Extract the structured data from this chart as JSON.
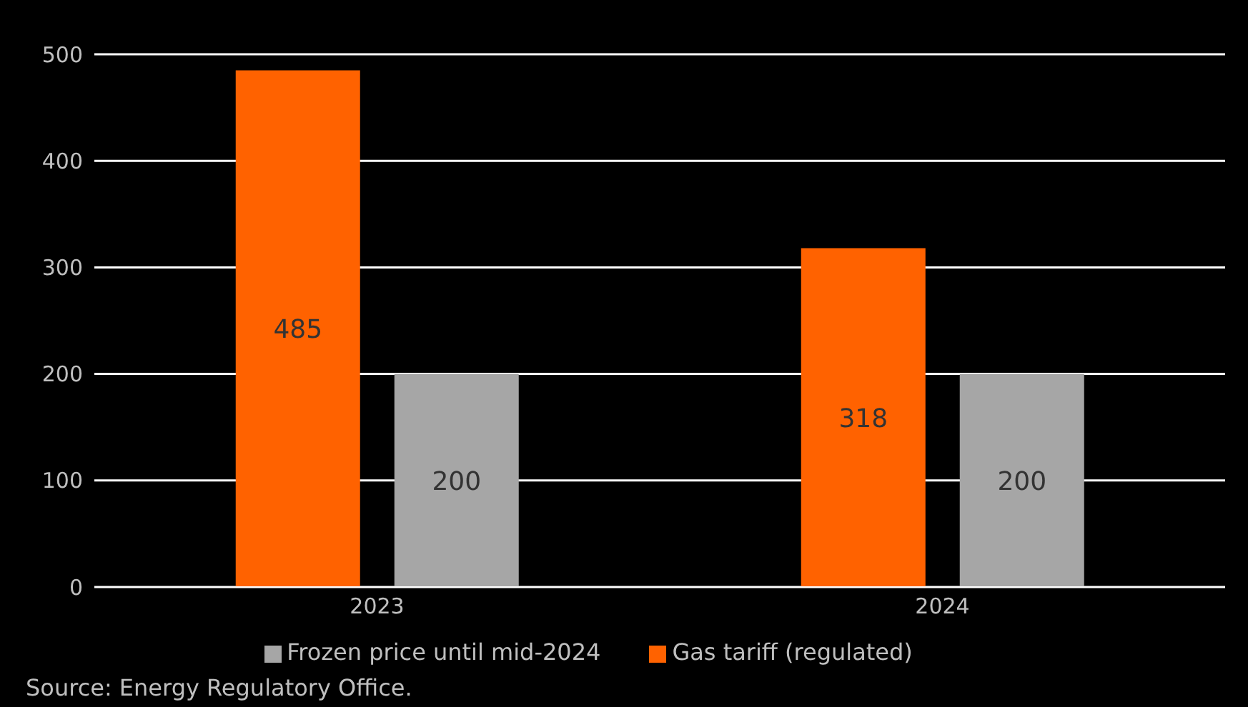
{
  "chart_data": {
    "type": "bar",
    "categories": [
      "2023",
      "2024"
    ],
    "series": [
      {
        "name": "Gas tariff (regulated)",
        "color": "#ff6200",
        "values": [
          485,
          318
        ]
      },
      {
        "name": "Frozen price until mid-2024",
        "color": "#a6a6a6",
        "values": [
          200,
          200
        ]
      }
    ],
    "ylim": [
      0,
      500
    ],
    "yticks": [
      0,
      100,
      200,
      300,
      400,
      500
    ],
    "grid": "y",
    "legend": "bottom",
    "data_labels": true,
    "annotations": [
      "Source: Energy Regulatory Office."
    ]
  }
}
